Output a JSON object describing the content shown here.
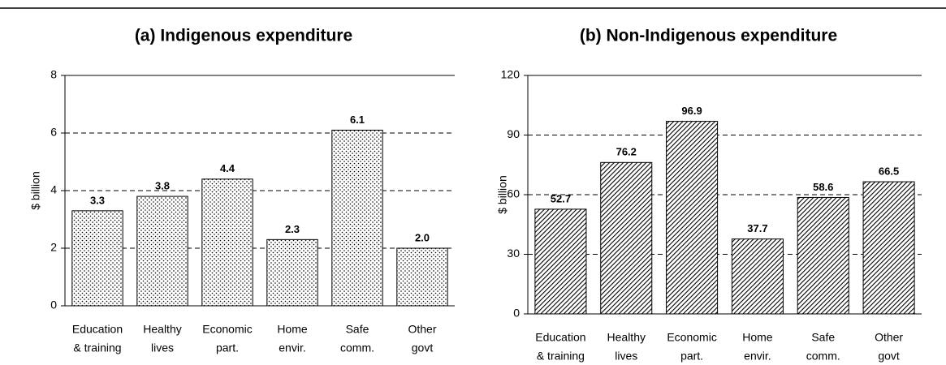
{
  "chart_data": [
    {
      "type": "bar",
      "title": "(a) Indigenous expenditure",
      "ylabel": "$ billion",
      "categories": [
        [
          "Education",
          "& training"
        ],
        [
          "Healthy",
          "lives"
        ],
        [
          "Economic",
          "part."
        ],
        [
          "Home",
          "envir."
        ],
        [
          "Safe",
          "comm."
        ],
        [
          "Other",
          "govt"
        ]
      ],
      "values": [
        3.3,
        3.8,
        4.4,
        2.3,
        6.1,
        2.0
      ],
      "value_labels": [
        "3.3",
        "3.8",
        "4.4",
        "2.3",
        "6.1",
        "2.0"
      ],
      "ylim": [
        0,
        8
      ],
      "yticks": [
        0,
        2,
        4,
        6,
        8
      ],
      "grid": true,
      "pattern": "dots"
    },
    {
      "type": "bar",
      "title": "(b) Non-Indigenous expenditure",
      "ylabel": "$ billion",
      "categories": [
        [
          "Education",
          "& training"
        ],
        [
          "Healthy",
          "lives"
        ],
        [
          "Economic",
          "part."
        ],
        [
          "Home",
          "envir."
        ],
        [
          "Safe",
          "comm."
        ],
        [
          "Other",
          "govt"
        ]
      ],
      "values": [
        52.7,
        76.2,
        96.9,
        37.7,
        58.6,
        66.5
      ],
      "value_labels": [
        "52.7",
        "76.2",
        "96.9",
        "37.7",
        "58.6",
        "66.5"
      ],
      "ylim": [
        0,
        120
      ],
      "yticks": [
        0,
        30,
        60,
        90,
        120
      ],
      "grid": true,
      "pattern": "hatch"
    }
  ]
}
